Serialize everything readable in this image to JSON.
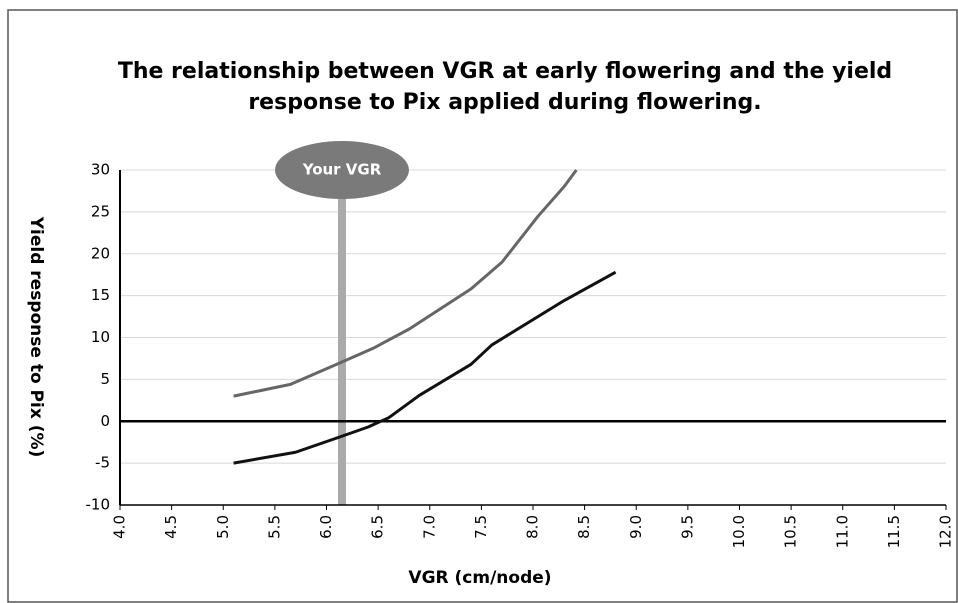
{
  "chart_data": {
    "type": "line",
    "title": [
      "The relationship between VGR at early flowering and the yield",
      "response to Pix applied during flowering."
    ],
    "x_label": "VGR (cm/node)",
    "y_label": "Yield response to Pix (%)",
    "xlim": [
      4.0,
      12.0
    ],
    "ylim": [
      -10,
      30
    ],
    "xticks": [
      {
        "value": 4.0,
        "label": "4.0"
      },
      4.5,
      {
        "value": 5.0,
        "label": "5.0"
      },
      5.5,
      {
        "value": 6.0,
        "label": "6.0"
      },
      6.5,
      {
        "value": 7.0,
        "label": "7.0"
      },
      7.5,
      {
        "value": 8.0,
        "label": "8.0"
      },
      8.5,
      {
        "value": 9.0,
        "label": "9.0"
      },
      9.5,
      {
        "value": 10.0,
        "label": "10.0"
      },
      10.5,
      {
        "value": 11.0,
        "label": "11.0"
      },
      11.5,
      {
        "value": 12.0,
        "label": "12.0"
      }
    ],
    "yticks": [
      -10,
      -5,
      0,
      5,
      10,
      15,
      20,
      25,
      30
    ],
    "grid": true,
    "series": [
      {
        "color": "#666666",
        "x": [
          5.1,
          5.65,
          6.1,
          6.45,
          6.8,
          7.4,
          7.7,
          8.05,
          8.3,
          8.42
        ],
        "values": [
          3,
          4.4,
          6.8,
          8.7,
          11,
          15.8,
          19,
          24.5,
          28,
          30
        ]
      },
      {
        "color": "#111111",
        "x": [
          5.1,
          5.7,
          6.1,
          6.4,
          6.6,
          6.9,
          7.4,
          7.6,
          8.3,
          8.8
        ],
        "values": [
          -5,
          -3.7,
          -2,
          -0.7,
          0.4,
          3.1,
          6.8,
          9.1,
          14.4,
          17.8
        ]
      }
    ],
    "annotations": [
      {
        "text": "Your VGR",
        "x": 6.15,
        "color": "#7a7a7a"
      }
    ]
  }
}
